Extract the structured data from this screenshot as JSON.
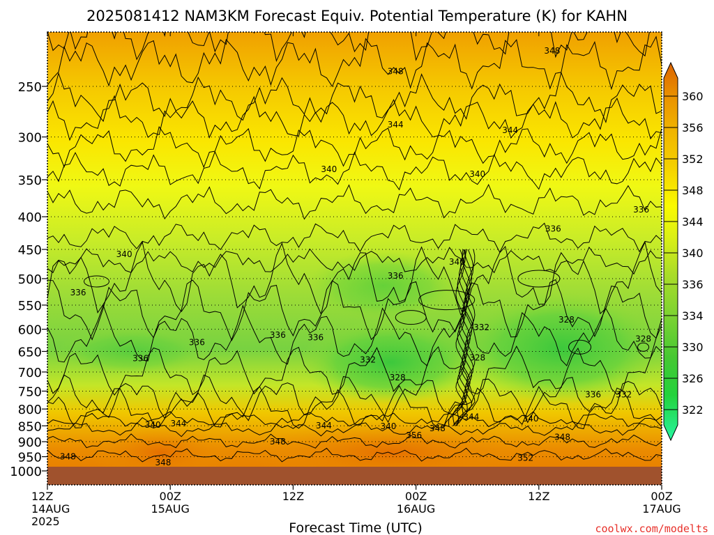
{
  "chart_data": {
    "type": "heatmap",
    "title": "2025081412 NAM3KM Forecast Equiv. Potential Temperature (K) for KAHN",
    "xlabel": "Forecast Time (UTC)",
    "ylabel": "",
    "y_scale": "log",
    "y_inverted": true,
    "y_ticks": [
      250,
      300,
      350,
      400,
      450,
      500,
      550,
      600,
      650,
      700,
      750,
      800,
      850,
      900,
      950,
      1000
    ],
    "x_ticks": [
      {
        "line1": "12Z",
        "line2": "14AUG",
        "line3": "2025",
        "hour": 0
      },
      {
        "line1": "00Z",
        "line2": "15AUG",
        "line3": "",
        "hour": 12
      },
      {
        "line1": "12Z",
        "line2": "",
        "line3": "",
        "hour": 24
      },
      {
        "line1": "00Z",
        "line2": "16AUG",
        "line3": "",
        "hour": 36
      },
      {
        "line1": "12Z",
        "line2": "",
        "line3": "",
        "hour": 48
      },
      {
        "line1": "00Z",
        "line2": "17AUG",
        "line3": "",
        "hour": 60
      }
    ],
    "x_range_hours": [
      0,
      60
    ],
    "grid": true,
    "colorbar": {
      "ticks": [
        322,
        326,
        330,
        334,
        336,
        340,
        344,
        348,
        352,
        356,
        360
      ],
      "colors": [
        "#2ef5a0",
        "#23d23c",
        "#46c832",
        "#78d232",
        "#aadc28",
        "#dcf014",
        "#fafa00",
        "#f5d200",
        "#f0b400",
        "#eb9600",
        "#e07000",
        "#d25a00"
      ]
    },
    "contour_labels": [
      {
        "text": "348",
        "hour": 34.0,
        "p": 237
      },
      {
        "text": "348",
        "hour": 49.3,
        "p": 220
      },
      {
        "text": "344",
        "hour": 34.0,
        "p": 287
      },
      {
        "text": "344",
        "hour": 45.2,
        "p": 293
      },
      {
        "text": "340",
        "hour": 27.5,
        "p": 337
      },
      {
        "text": "340",
        "hour": 42.0,
        "p": 343
      },
      {
        "text": "336",
        "hour": 58.0,
        "p": 390
      },
      {
        "text": "336",
        "hour": 49.4,
        "p": 418
      },
      {
        "text": "340",
        "hour": 7.5,
        "p": 458
      },
      {
        "text": "340",
        "hour": 40.0,
        "p": 471
      },
      {
        "text": "336",
        "hour": 34.0,
        "p": 495
      },
      {
        "text": "336",
        "hour": 3.0,
        "p": 526
      },
      {
        "text": "332",
        "hour": 42.4,
        "p": 596
      },
      {
        "text": "328",
        "hour": 50.7,
        "p": 580
      },
      {
        "text": "328",
        "hour": 58.2,
        "p": 621
      },
      {
        "text": "336",
        "hour": 22.5,
        "p": 613
      },
      {
        "text": "336",
        "hour": 26.2,
        "p": 618
      },
      {
        "text": "336",
        "hour": 14.6,
        "p": 629
      },
      {
        "text": "336",
        "hour": 9.1,
        "p": 667
      },
      {
        "text": "332",
        "hour": 31.3,
        "p": 670
      },
      {
        "text": "328",
        "hour": 42.0,
        "p": 665
      },
      {
        "text": "328",
        "hour": 34.2,
        "p": 714
      },
      {
        "text": "336",
        "hour": 53.3,
        "p": 760
      },
      {
        "text": "332",
        "hour": 56.3,
        "p": 760
      },
      {
        "text": "344",
        "hour": 41.4,
        "p": 823
      },
      {
        "text": "340",
        "hour": 47.2,
        "p": 828
      },
      {
        "text": "340",
        "hour": 10.3,
        "p": 847
      },
      {
        "text": "344",
        "hour": 12.8,
        "p": 843
      },
      {
        "text": "344",
        "hour": 27.0,
        "p": 849
      },
      {
        "text": "340",
        "hour": 33.3,
        "p": 852
      },
      {
        "text": "348",
        "hour": 38.1,
        "p": 858
      },
      {
        "text": "356",
        "hour": 35.8,
        "p": 880
      },
      {
        "text": "348",
        "hour": 50.3,
        "p": 885
      },
      {
        "text": "348",
        "hour": 22.5,
        "p": 900
      },
      {
        "text": "348",
        "hour": 2.0,
        "p": 950
      },
      {
        "text": "352",
        "hour": 46.7,
        "p": 955
      },
      {
        "text": "348",
        "hour": 11.3,
        "p": 970
      }
    ]
  },
  "watermark": "coolwx.com/modelts",
  "colors": {
    "ground": "#a0522d",
    "frame": "#000000"
  }
}
